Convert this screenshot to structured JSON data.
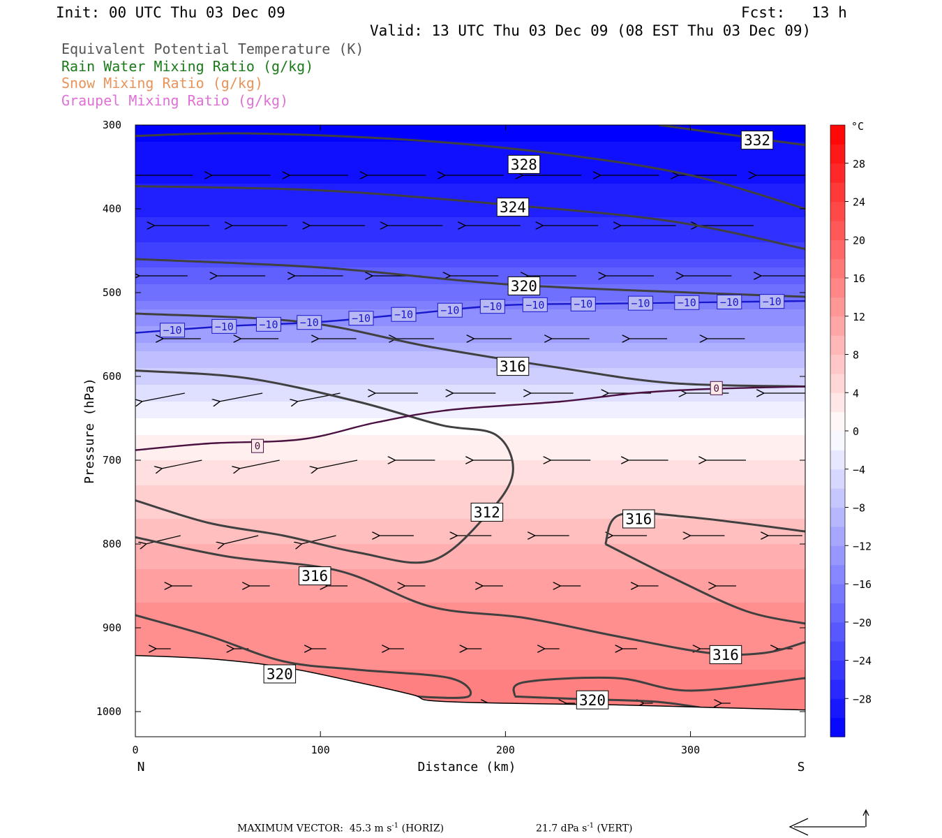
{
  "header": {
    "init": "Init: 00 UTC Thu 03 Dec 09",
    "fcst": "Fcst:   13 h",
    "valid": "Valid: 13 UTC Thu 03 Dec 09 (08 EST Thu 03 Dec 09)"
  },
  "fields": [
    {
      "label": "Equivalent Potential Temperature (K)",
      "color": "#555555"
    },
    {
      "label": "Rain Water Mixing Ratio (g/kg)",
      "color": "#1a7a1a"
    },
    {
      "label": "Snow Mixing Ratio (g/kg)",
      "color": "#e8935a"
    },
    {
      "label": "Graupel Mixing Ratio (g/kg)",
      "color": "#e070d8"
    }
  ],
  "chart_data": {
    "type": "cross-section",
    "xlabel": "Distance (km)",
    "ylabel": "Pressure (hPa)",
    "xlim": [
      0,
      362
    ],
    "ylim": [
      1030,
      300
    ],
    "x_ticks": [
      0,
      100,
      200,
      300
    ],
    "y_ticks": [
      300,
      400,
      500,
      600,
      700,
      800,
      900,
      1000
    ],
    "x_end_labels": {
      "left": "N",
      "right": "S"
    },
    "colorbar": {
      "unit": "°C",
      "range": [
        -32,
        32
      ],
      "tick_labels": [
        "28",
        "24",
        "20",
        "16",
        "12",
        "8",
        "4",
        "0",
        "−4",
        "−8",
        "−12",
        "−16",
        "−20",
        "−24",
        "−28"
      ],
      "tick_values": [
        28,
        24,
        20,
        16,
        12,
        8,
        4,
        0,
        -4,
        -8,
        -12,
        -16,
        -20,
        -24,
        -28
      ]
    },
    "temperature_field": {
      "description_levels": [
        {
          "p": 300,
          "t": -32
        },
        {
          "p": 400,
          "t": -28
        },
        {
          "p": 450,
          "t": -24
        },
        {
          "p": 500,
          "t": -18
        },
        {
          "p": 550,
          "t": -12
        },
        {
          "p": 600,
          "t": -6
        },
        {
          "p": 650,
          "t": -1
        },
        {
          "p": 700,
          "t": 3
        },
        {
          "p": 750,
          "t": 6
        },
        {
          "p": 800,
          "t": 9
        },
        {
          "p": 850,
          "t": 12
        },
        {
          "p": 900,
          "t": 14
        },
        {
          "p": 950,
          "t": 15
        },
        {
          "p": 1000,
          "t": 17
        }
      ]
    },
    "theta_e_contours": [
      {
        "value": 332,
        "points": [
          [
            283,
            300
          ],
          [
            362,
            324
          ]
        ]
      },
      {
        "value": 328,
        "points": [
          [
            0,
            313
          ],
          [
            60,
            310
          ],
          [
            150,
            318
          ],
          [
            230,
            335
          ],
          [
            300,
            360
          ],
          [
            362,
            400
          ]
        ]
      },
      {
        "value": 324,
        "points": [
          [
            0,
            373
          ],
          [
            100,
            378
          ],
          [
            200,
            395
          ],
          [
            290,
            415
          ],
          [
            362,
            448
          ]
        ]
      },
      {
        "value": 320,
        "points": [
          [
            0,
            460
          ],
          [
            100,
            470
          ],
          [
            200,
            490
          ],
          [
            300,
            500
          ],
          [
            362,
            505
          ]
        ]
      },
      {
        "value": 316,
        "points": [
          [
            0,
            525
          ],
          [
            90,
            535
          ],
          [
            160,
            565
          ],
          [
            230,
            590
          ],
          [
            290,
            608
          ],
          [
            362,
            612
          ]
        ]
      },
      {
        "value": 312,
        "points": [
          [
            0,
            593
          ],
          [
            60,
            602
          ],
          [
            120,
            630
          ],
          [
            165,
            658
          ],
          [
            195,
            670
          ],
          [
            204,
            715
          ],
          [
            190,
            765
          ],
          [
            160,
            820
          ],
          [
            120,
            810
          ],
          [
            80,
            790
          ],
          [
            40,
            775
          ],
          [
            0,
            748
          ]
        ]
      },
      {
        "value": 316,
        "points": [
          [
            0,
            792
          ],
          [
            50,
            815
          ],
          [
            110,
            832
          ],
          [
            160,
            875
          ],
          [
            210,
            888
          ],
          [
            260,
            910
          ],
          [
            310,
            930
          ],
          [
            340,
            930
          ],
          [
            362,
            917
          ]
        ]
      },
      {
        "value": 316,
        "points": [
          [
            254,
            800
          ],
          [
            262,
            765
          ],
          [
            300,
            768
          ],
          [
            362,
            785
          ]
        ]
      },
      {
        "value": 316,
        "points": [
          [
            254,
            800
          ],
          [
            290,
            840
          ],
          [
            330,
            880
          ],
          [
            362,
            895
          ]
        ]
      },
      {
        "value": 320,
        "points": [
          [
            0,
            885
          ],
          [
            40,
            910
          ],
          [
            80,
            940
          ],
          [
            120,
            950
          ],
          [
            170,
            960
          ],
          [
            180,
            982
          ],
          [
            150,
            982
          ]
        ]
      },
      {
        "value": 320,
        "points": [
          [
            205,
            982
          ],
          [
            210,
            965
          ],
          [
            260,
            960
          ],
          [
            300,
            975
          ],
          [
            362,
            960
          ]
        ]
      },
      {
        "value": 320,
        "points": [
          [
            205,
            982
          ],
          [
            240,
            985
          ],
          [
            280,
            988
          ],
          [
            305,
            995
          ]
        ]
      }
    ],
    "temperature_contours": [
      {
        "value": -10,
        "color": "#1818cc",
        "points": [
          [
            0,
            548
          ],
          [
            50,
            540
          ],
          [
            100,
            535
          ],
          [
            150,
            525
          ],
          [
            200,
            515
          ],
          [
            260,
            513
          ],
          [
            362,
            510
          ]
        ]
      },
      {
        "value": 0,
        "color": "#4a1040",
        "points": [
          [
            0,
            688
          ],
          [
            40,
            680
          ],
          [
            90,
            675
          ],
          [
            130,
            655
          ],
          [
            170,
            640
          ],
          [
            230,
            630
          ],
          [
            270,
            620
          ],
          [
            310,
            615
          ],
          [
            362,
            612
          ]
        ]
      }
    ],
    "minus10_label_positions_km": [
      20,
      48,
      72,
      94,
      122,
      145,
      170,
      193,
      216,
      242,
      273,
      298,
      321,
      344
    ],
    "zero_labels": [
      {
        "x": 66,
        "p": 683
      },
      {
        "x": 314,
        "p": 614
      }
    ],
    "theta_e_label_values": [
      {
        "x": 336,
        "p": 318,
        "value": "332"
      },
      {
        "x": 210,
        "p": 347,
        "value": "328"
      },
      {
        "x": 204,
        "p": 398,
        "value": "324"
      },
      {
        "x": 210,
        "p": 492,
        "value": "320"
      },
      {
        "x": 204,
        "p": 588,
        "value": "316"
      },
      {
        "x": 190,
        "p": 762,
        "value": "312"
      },
      {
        "x": 272,
        "p": 770,
        "value": "316"
      },
      {
        "x": 97,
        "p": 838,
        "value": "316"
      },
      {
        "x": 319,
        "p": 932,
        "value": "316"
      },
      {
        "x": 78,
        "p": 955,
        "value": "320"
      },
      {
        "x": 247,
        "p": 986,
        "value": "320"
      }
    ],
    "terrain_surface": [
      [
        0,
        933
      ],
      [
        40,
        937
      ],
      [
        80,
        947
      ],
      [
        120,
        965
      ],
      [
        150,
        980
      ],
      [
        160,
        987
      ],
      [
        200,
        990
      ],
      [
        260,
        992
      ],
      [
        310,
        995
      ],
      [
        362,
        998
      ]
    ]
  },
  "footer": {
    "left": "MAXIMUM VECTOR:  45.3 m s",
    "left_sup": "-1",
    "left_end": " (HORIZ)",
    "right": "21.7 dPa s",
    "right_sup": "-1",
    "right_end": " (VERT)"
  }
}
